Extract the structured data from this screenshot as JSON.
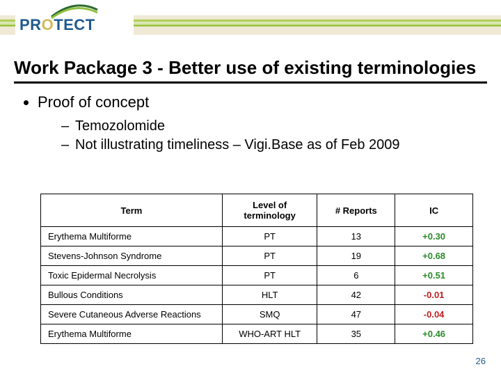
{
  "logo": {
    "text_pre": "PR",
    "text_o": "O",
    "text_post": "TECT"
  },
  "title": "Work Package 3 - Better use of existing terminologies",
  "bullets": {
    "b1": "Proof of concept",
    "b2_1": "Temozolomide",
    "b2_2": "Not illustrating timeliness – Vigi.Base as of Feb 2009"
  },
  "table": {
    "columns": [
      "Term",
      "Level of terminology",
      "# Reports",
      "IC"
    ],
    "col_widths": [
      "42%",
      "22%",
      "18%",
      "18%"
    ],
    "rows": [
      {
        "term": "Erythema Multiforme",
        "level": "PT",
        "reports": "13",
        "ic": "+0.30",
        "ic_color": "#2a8a2a"
      },
      {
        "term": "Stevens-Johnson Syndrome",
        "level": "PT",
        "reports": "19",
        "ic": "+0.68",
        "ic_color": "#2a8a2a"
      },
      {
        "term": "Toxic Epidermal Necrolysis",
        "level": "PT",
        "reports": "6",
        "ic": "+0.51",
        "ic_color": "#2a8a2a"
      },
      {
        "term": "Bullous Conditions",
        "level": "HLT",
        "reports": "42",
        "ic": "-0.01",
        "ic_color": "#c02020"
      },
      {
        "term": "Severe Cutaneous Adverse Reactions",
        "level": "SMQ",
        "reports": "47",
        "ic": "-0.04",
        "ic_color": "#c02020"
      },
      {
        "term": "Erythema Multiforme",
        "level": "WHO-ART HLT",
        "reports": "35",
        "ic": "+0.46",
        "ic_color": "#2a8a2a"
      }
    ]
  },
  "page_number": "26",
  "colors": {
    "title_underline": "#000000",
    "logo_blue": "#1f5a8f",
    "logo_gold": "#d2b85a",
    "swoosh_dark": "#2b6b2b",
    "swoosh_light": "#8fbf3f",
    "pos": "#2a8a2a",
    "neg": "#c02020"
  }
}
